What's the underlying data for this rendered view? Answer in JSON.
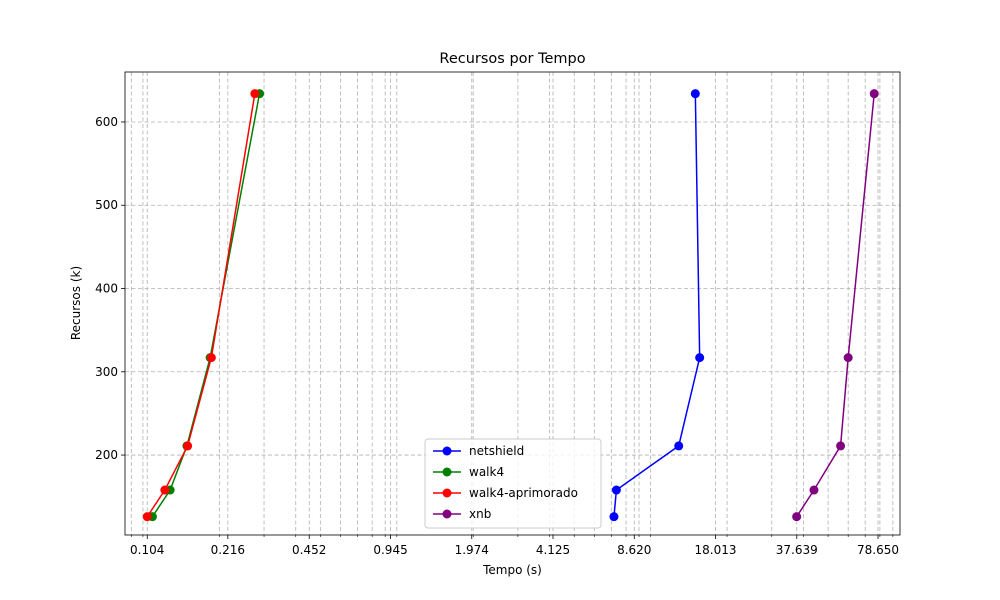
{
  "chart_data": {
    "type": "line",
    "title": "Recursos por Tempo",
    "xlabel": "Tempo (s)",
    "ylabel": "Recursos (k)",
    "xscale": "log",
    "xlim": [
      0.085,
      96
    ],
    "ylim": [
      104,
      660
    ],
    "x_ticks": [
      0.104,
      0.216,
      0.452,
      0.945,
      1.974,
      4.125,
      8.62,
      18.013,
      37.639,
      78.65
    ],
    "x_tick_labels": [
      "0.104",
      "0.216",
      "0.452",
      "0.945",
      "1.974",
      "4.125",
      "8.620",
      "18.013",
      "37.639",
      "78.650"
    ],
    "y_ticks": [
      200,
      300,
      400,
      500,
      600
    ],
    "y_tick_labels": [
      "200",
      "300",
      "400",
      "500",
      "600"
    ],
    "grid": true,
    "legend_position": "lower-center",
    "series": [
      {
        "name": "netshield",
        "color": "#0000ff",
        "x": [
          7.17,
          7.33,
          12.9,
          15.6,
          15.0
        ],
        "y": [
          126,
          158,
          211,
          317,
          634
        ]
      },
      {
        "name": "walk4",
        "color": "#008000",
        "x": [
          0.109,
          0.128,
          0.149,
          0.184,
          0.288
        ],
        "y": [
          126,
          158,
          211,
          317,
          634
        ]
      },
      {
        "name": "walk4-aprimorado",
        "color": "#ff0000",
        "x": [
          0.104,
          0.122,
          0.15,
          0.186,
          0.276
        ],
        "y": [
          126,
          158,
          211,
          317,
          634
        ]
      },
      {
        "name": "xnb",
        "color": "#800080",
        "x": [
          37.6,
          44.0,
          56.0,
          60.0,
          76.0
        ],
        "y": [
          126,
          158,
          211,
          317,
          634
        ]
      }
    ]
  }
}
